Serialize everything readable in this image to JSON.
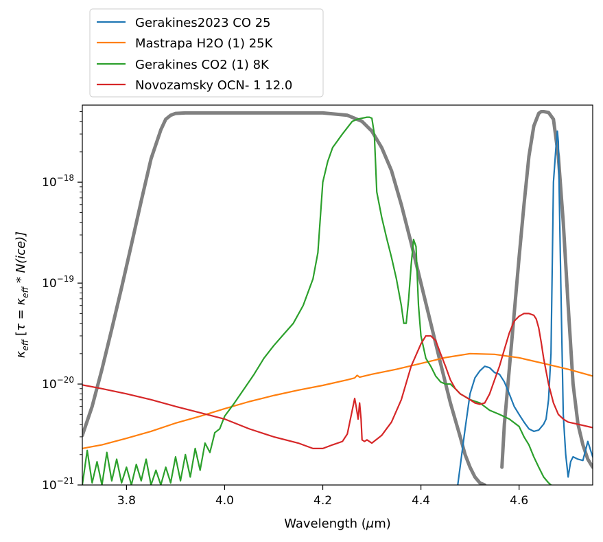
{
  "chart_data": {
    "type": "line",
    "title": "",
    "xlabel": "Wavelength ($\\mu$m)",
    "xlabel_parts": {
      "before": "Wavelength (",
      "mu": "μ",
      "after": "m)"
    },
    "ylabel": "$\\kappa_{eff}$ [$\\tau = \\kappa_{eff} * N(ice)$]",
    "ylabel_parts": {
      "k": "κ",
      "sub": "eff",
      "bracket_open": " [",
      "tau": "τ",
      "eq": " = ",
      "k2": "κ",
      "sub2": "eff",
      "star": " * ",
      "N": "N",
      "paren": "(ice)]"
    },
    "xlim": [
      3.71,
      4.75
    ],
    "ylim": [
      1e-21,
      5.8e-18
    ],
    "yscale": "log",
    "grid": false,
    "legend_placement": "above-left",
    "x_ticks": [
      {
        "value": 3.8,
        "label": "3.8"
      },
      {
        "value": 4.0,
        "label": "4.0"
      },
      {
        "value": 4.2,
        "label": "4.2"
      },
      {
        "value": 4.4,
        "label": "4.4"
      },
      {
        "value": 4.6,
        "label": "4.6"
      }
    ],
    "y_ticks": [
      {
        "value": 1e-21,
        "base": "10",
        "exp": "−21"
      },
      {
        "value": 1e-20,
        "base": "10",
        "exp": "−20"
      },
      {
        "value": 1e-19,
        "base": "10",
        "exp": "−19"
      },
      {
        "value": 1e-18,
        "base": "10",
        "exp": "−18"
      }
    ],
    "series": [
      {
        "name": "Gerakines2023 CO 25",
        "color": "#1f77b4",
        "x": [
          4.475,
          4.49,
          4.5,
          4.51,
          4.52,
          4.53,
          4.54,
          4.55,
          4.56,
          4.57,
          4.58,
          4.59,
          4.6,
          4.61,
          4.62,
          4.63,
          4.64,
          4.65,
          4.655,
          4.66,
          4.665,
          4.67,
          4.675,
          4.678,
          4.68,
          4.685,
          4.69,
          4.695,
          4.7,
          4.705,
          4.71,
          4.72,
          4.73,
          4.74,
          4.75
        ],
        "y": [
          1e-21,
          3.6e-21,
          8e-21,
          1.15e-20,
          1.35e-20,
          1.5e-20,
          1.45e-20,
          1.3e-20,
          1.25e-20,
          1.05e-20,
          8e-21,
          6e-21,
          5e-21,
          4.2e-21,
          3.6e-21,
          3.4e-21,
          3.5e-21,
          4e-21,
          4.5e-21,
          7e-21,
          2e-20,
          1e-18,
          2.2e-18,
          3.2e-18,
          2.5e-18,
          1e-19,
          5e-21,
          2e-21,
          1.2e-21,
          1.7e-21,
          1.9e-21,
          1.8e-21,
          1.75e-21,
          2.7e-21,
          1.9e-21
        ]
      },
      {
        "name": "Mastrapa H2O (1) 25K",
        "color": "#ff7f0e",
        "x": [
          3.71,
          3.75,
          3.8,
          3.85,
          3.9,
          3.95,
          4.0,
          4.05,
          4.1,
          4.15,
          4.2,
          4.25,
          4.265,
          4.27,
          4.275,
          4.3,
          4.35,
          4.4,
          4.45,
          4.5,
          4.55,
          4.6,
          4.65,
          4.7,
          4.75
        ],
        "y": [
          2.3e-21,
          2.5e-21,
          2.9e-21,
          3.4e-21,
          4.1e-21,
          4.8e-21,
          5.7e-21,
          6.7e-21,
          7.7e-21,
          8.7e-21,
          9.7e-21,
          1.1e-20,
          1.15e-20,
          1.22e-20,
          1.17e-20,
          1.25e-20,
          1.4e-20,
          1.6e-20,
          1.83e-20,
          2e-20,
          1.97e-20,
          1.82e-20,
          1.6e-20,
          1.4e-20,
          1.2e-20
        ]
      },
      {
        "name": "Gerakines CO2 (1) 8K",
        "color": "#2ca02c",
        "x": [
          3.71,
          3.72,
          3.73,
          3.74,
          3.75,
          3.76,
          3.77,
          3.78,
          3.79,
          3.8,
          3.81,
          3.82,
          3.83,
          3.84,
          3.85,
          3.86,
          3.87,
          3.88,
          3.89,
          3.9,
          3.91,
          3.92,
          3.93,
          3.94,
          3.95,
          3.96,
          3.97,
          3.98,
          3.99,
          4.0,
          4.02,
          4.04,
          4.06,
          4.08,
          4.1,
          4.12,
          4.14,
          4.16,
          4.18,
          4.19,
          4.2,
          4.21,
          4.22,
          4.24,
          4.26,
          4.27,
          4.28,
          4.29,
          4.295,
          4.3,
          4.305,
          4.31,
          4.32,
          4.33,
          4.34,
          4.35,
          4.36,
          4.365,
          4.37,
          4.375,
          4.38,
          4.385,
          4.39,
          4.395,
          4.4,
          4.41,
          4.42,
          4.43,
          4.44,
          4.45,
          4.46,
          4.47,
          4.48,
          4.49,
          4.5,
          4.52,
          4.54,
          4.56,
          4.58,
          4.6,
          4.61,
          4.62,
          4.63,
          4.64,
          4.65,
          4.66,
          4.665
        ],
        "y": [
          1e-21,
          2.2e-21,
          1.05e-21,
          1.7e-21,
          1e-21,
          2.1e-21,
          1.1e-21,
          1.8e-21,
          1.05e-21,
          1.5e-21,
          1e-21,
          1.6e-21,
          1.1e-21,
          1.8e-21,
          1e-21,
          1.4e-21,
          1e-21,
          1.5e-21,
          1.05e-21,
          1.9e-21,
          1.1e-21,
          2e-21,
          1.2e-21,
          2.3e-21,
          1.4e-21,
          2.6e-21,
          2.1e-21,
          3.3e-21,
          3.6e-21,
          4.8e-21,
          6.5e-21,
          9e-21,
          1.25e-20,
          1.8e-20,
          2.4e-20,
          3.1e-20,
          4e-20,
          6e-20,
          1.1e-19,
          2e-19,
          1e-18,
          1.6e-18,
          2.2e-18,
          3e-18,
          4e-18,
          4.2e-18,
          4.3e-18,
          4.4e-18,
          4.4e-18,
          4.3e-18,
          3e-18,
          8e-19,
          4.5e-19,
          2.8e-19,
          1.8e-19,
          1.1e-19,
          6e-20,
          4e-20,
          4e-20,
          7e-20,
          1.5e-19,
          2.7e-19,
          2.3e-19,
          6e-20,
          3e-20,
          1.8e-20,
          1.5e-20,
          1.2e-20,
          1.05e-20,
          1e-20,
          1e-20,
          9e-21,
          8e-21,
          7.5e-21,
          7e-21,
          6.5e-21,
          5.5e-21,
          5e-21,
          4.5e-21,
          3.8e-21,
          3e-21,
          2.5e-21,
          1.9e-21,
          1.5e-21,
          1.2e-21,
          1.05e-21,
          1e-21
        ]
      },
      {
        "name": "Novozamsky OCN- 1 12.0",
        "color": "#d62728",
        "x": [
          3.71,
          3.75,
          3.8,
          3.85,
          3.9,
          3.95,
          4.0,
          4.05,
          4.1,
          4.15,
          4.18,
          4.2,
          4.22,
          4.24,
          4.25,
          4.26,
          4.265,
          4.268,
          4.272,
          4.275,
          4.278,
          4.28,
          4.285,
          4.29,
          4.3,
          4.32,
          4.34,
          4.36,
          4.38,
          4.4,
          4.41,
          4.42,
          4.43,
          4.44,
          4.45,
          4.46,
          4.47,
          4.48,
          4.49,
          4.5,
          4.51,
          4.52,
          4.53,
          4.54,
          4.55,
          4.56,
          4.57,
          4.58,
          4.59,
          4.6,
          4.61,
          4.62,
          4.63,
          4.635,
          4.64,
          4.645,
          4.65,
          4.66,
          4.67,
          4.68,
          4.69,
          4.7,
          4.72,
          4.75
        ],
        "y": [
          9.8e-21,
          9e-21,
          8e-21,
          7e-21,
          6e-21,
          5.2e-21,
          4.5e-21,
          3.6e-21,
          3e-21,
          2.6e-21,
          2.3e-21,
          2.3e-21,
          2.5e-21,
          2.7e-21,
          3.2e-21,
          5.5e-21,
          7.2e-21,
          6e-21,
          4.5e-21,
          6.5e-21,
          4.5e-21,
          2.8e-21,
          2.7e-21,
          2.8e-21,
          2.6e-21,
          3.1e-21,
          4.2e-21,
          7e-21,
          1.5e-20,
          2.5e-20,
          3e-20,
          3e-20,
          2.7e-20,
          2e-20,
          1.5e-20,
          1.1e-20,
          9e-21,
          8e-21,
          7.5e-21,
          7e-21,
          6.5e-21,
          6.3e-21,
          6.5e-21,
          8e-21,
          1.1e-20,
          1.5e-20,
          2.2e-20,
          3.2e-20,
          4.2e-20,
          4.7e-20,
          5e-20,
          5e-20,
          4.8e-20,
          4.4e-20,
          3.6e-20,
          2.6e-20,
          1.8e-20,
          1e-20,
          6.5e-21,
          5e-21,
          4.5e-21,
          4.2e-21,
          4e-21,
          3.7e-21
        ]
      },
      {
        "name": "",
        "color": "#808080",
        "x": [
          3.71,
          3.73,
          3.75,
          3.77,
          3.79,
          3.81,
          3.83,
          3.85,
          3.87,
          3.88,
          3.89,
          3.9,
          3.92,
          3.95,
          4.0,
          4.1,
          4.2,
          4.25,
          4.28,
          4.3,
          4.32,
          4.34,
          4.36,
          4.38,
          4.4,
          4.42,
          4.44,
          4.46,
          4.48,
          4.49,
          4.5,
          4.51,
          4.52,
          4.53
        ],
        "y": [
          3.1e-21,
          6e-21,
          1.4e-20,
          3.5e-20,
          9e-20,
          2.4e-19,
          6.5e-19,
          1.7e-18,
          3.3e-18,
          4.2e-18,
          4.6e-18,
          4.8e-18,
          4.85e-18,
          4.85e-18,
          4.85e-18,
          4.85e-18,
          4.85e-18,
          4.6e-18,
          4e-18,
          3.2e-18,
          2.2e-18,
          1.3e-18,
          6e-19,
          2.5e-19,
          1e-19,
          4e-20,
          1.6e-20,
          6.5e-21,
          3e-21,
          2e-21,
          1.5e-21,
          1.2e-21,
          1.05e-21,
          1e-21
        ]
      },
      {
        "name": "",
        "color": "#808080",
        "x": [
          4.565,
          4.57,
          4.58,
          4.59,
          4.6,
          4.61,
          4.62,
          4.63,
          4.64,
          4.645,
          4.65,
          4.66,
          4.67,
          4.68,
          4.69,
          4.7,
          4.71,
          4.72,
          4.73,
          4.74,
          4.75
        ],
        "y": [
          1.5e-21,
          4e-21,
          1.4e-20,
          5e-20,
          1.8e-19,
          6e-19,
          1.8e-18,
          3.6e-18,
          4.8e-18,
          5e-18,
          5e-18,
          4.9e-18,
          4.2e-18,
          1.8e-18,
          4e-19,
          6e-20,
          1e-20,
          4e-21,
          2.5e-21,
          1.8e-21,
          1.5e-21
        ]
      }
    ]
  }
}
